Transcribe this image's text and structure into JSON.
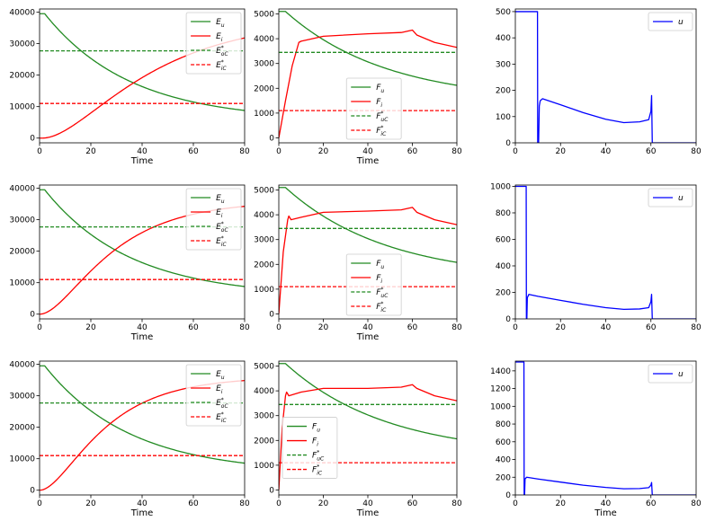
{
  "figure": {
    "title": "",
    "rows": 3,
    "cols": 3
  },
  "chart_data": [
    {
      "id": "r0c0",
      "type": "line",
      "xlabel": "Time",
      "xlim": [
        0,
        80
      ],
      "ylim": [
        -1500,
        41000
      ],
      "xticks": [
        0,
        20,
        40,
        60,
        80
      ],
      "yticks": [
        0,
        10000,
        20000,
        30000,
        40000
      ],
      "legend_loc": "top-right",
      "series": [
        {
          "name": "E_u",
          "label": {
            "base": "E",
            "sub": "u",
            "sup": ""
          },
          "color": "#228b22",
          "style": "solid",
          "kind": "decay",
          "params": {
            "start": 39500,
            "end": 5500,
            "k": 0.03,
            "delay": 2
          }
        },
        {
          "name": "E_i",
          "label": {
            "base": "E",
            "sub": "i",
            "sup": ""
          },
          "color": "#ff0000",
          "style": "solid",
          "kind": "sigmoid",
          "params": {
            "start": 0,
            "max": 38000,
            "k": 0.03,
            "t0": 1
          }
        },
        {
          "name": "E*_oC",
          "label": {
            "base": "E",
            "sub": "oC",
            "sup": "*"
          },
          "color": "#228b22",
          "style": "dashed",
          "kind": "const",
          "params": {
            "value": 27700
          }
        },
        {
          "name": "E*_iC",
          "label": {
            "base": "E",
            "sub": "iC",
            "sup": "*"
          },
          "color": "#ff0000",
          "style": "dashed",
          "kind": "const",
          "params": {
            "value": 11000
          }
        }
      ]
    },
    {
      "id": "r0c1",
      "type": "line",
      "xlabel": "Time",
      "xlim": [
        0,
        80
      ],
      "ylim": [
        -200,
        5200
      ],
      "xticks": [
        0,
        20,
        40,
        60,
        80
      ],
      "yticks": [
        0,
        1000,
        2000,
        3000,
        4000,
        5000
      ],
      "legend_loc": "lower-center",
      "series": [
        {
          "name": "F_u",
          "label": {
            "base": "F",
            "sub": "u",
            "sup": ""
          },
          "color": "#228b22",
          "style": "solid",
          "kind": "decay",
          "params": {
            "start": 5100,
            "end": 1450,
            "k": 0.022,
            "delay": 3
          }
        },
        {
          "name": "F_i",
          "label": {
            "base": "F",
            "sub": "i",
            "sup": ""
          },
          "color": "#ff0000",
          "style": "solid",
          "kind": "profile",
          "params": {
            "points": [
              [
                0,
                0
              ],
              [
                3,
                1500
              ],
              [
                6,
                2900
              ],
              [
                9,
                3850
              ],
              [
                10,
                3900
              ],
              [
                20,
                4100
              ],
              [
                40,
                4200
              ],
              [
                55,
                4250
              ],
              [
                60,
                4350
              ],
              [
                62,
                4150
              ],
              [
                70,
                3850
              ],
              [
                80,
                3650
              ]
            ]
          }
        },
        {
          "name": "F*_uC",
          "label": {
            "base": "F",
            "sub": "uC",
            "sup": "*"
          },
          "color": "#228b22",
          "style": "dashed",
          "kind": "const",
          "params": {
            "value": 3450
          }
        },
        {
          "name": "F*_iC",
          "label": {
            "base": "F",
            "sub": "iC",
            "sup": "*"
          },
          "color": "#ff0000",
          "style": "dashed",
          "kind": "const",
          "params": {
            "value": 1100
          }
        }
      ]
    },
    {
      "id": "r0c2",
      "type": "line",
      "xlabel": "",
      "xlim": [
        0,
        80
      ],
      "ylim": [
        0,
        510
      ],
      "xticks": [
        0,
        20,
        40,
        60,
        80
      ],
      "yticks": [
        0,
        100,
        200,
        300,
        400,
        500
      ],
      "legend_loc": "top-right",
      "series": [
        {
          "name": "u",
          "label": {
            "base": "u",
            "sub": "",
            "sup": ""
          },
          "color": "#0000ff",
          "style": "solid",
          "kind": "profile",
          "params": {
            "points": [
              [
                0,
                500
              ],
              [
                9.8,
                500
              ],
              [
                9.9,
                0
              ],
              [
                10.3,
                0
              ],
              [
                10.6,
                140
              ],
              [
                11,
                160
              ],
              [
                12,
                168
              ],
              [
                20,
                145
              ],
              [
                30,
                115
              ],
              [
                40,
                90
              ],
              [
                48,
                77
              ],
              [
                55,
                80
              ],
              [
                59,
                88
              ],
              [
                60,
                120
              ],
              [
                60.3,
                180
              ],
              [
                60.6,
                0
              ],
              [
                80,
                0
              ]
            ]
          }
        }
      ]
    },
    {
      "id": "r1c0",
      "type": "line",
      "xlabel": "Time",
      "xlim": [
        0,
        80
      ],
      "ylim": [
        -1500,
        41000
      ],
      "xticks": [
        0,
        20,
        40,
        60,
        80
      ],
      "yticks": [
        0,
        10000,
        20000,
        30000,
        40000
      ],
      "legend_loc": "top-right",
      "series": [
        {
          "name": "E_u",
          "label": {
            "base": "E",
            "sub": "u",
            "sup": ""
          },
          "color": "#228b22",
          "style": "solid",
          "kind": "decay",
          "params": {
            "start": 39500,
            "end": 5500,
            "k": 0.03,
            "delay": 2
          }
        },
        {
          "name": "E_i",
          "label": {
            "base": "E",
            "sub": "i",
            "sup": ""
          },
          "color": "#ff0000",
          "style": "solid",
          "kind": "sigmoid",
          "params": {
            "start": 0,
            "max": 36000,
            "k": 0.045,
            "t0": 0
          }
        },
        {
          "name": "E*_oC",
          "label": {
            "base": "E",
            "sub": "oC",
            "sup": "*"
          },
          "color": "#228b22",
          "style": "dashed",
          "kind": "const",
          "params": {
            "value": 27700
          }
        },
        {
          "name": "E*_iC",
          "label": {
            "base": "E",
            "sub": "iC",
            "sup": "*"
          },
          "color": "#ff0000",
          "style": "dashed",
          "kind": "const",
          "params": {
            "value": 11000
          }
        }
      ]
    },
    {
      "id": "r1c1",
      "type": "line",
      "xlabel": "Time",
      "xlim": [
        0,
        80
      ],
      "ylim": [
        -200,
        5200
      ],
      "xticks": [
        0,
        20,
        40,
        60,
        80
      ],
      "yticks": [
        0,
        1000,
        2000,
        3000,
        4000,
        5000
      ],
      "legend_loc": "lower-center",
      "series": [
        {
          "name": "F_u",
          "label": {
            "base": "F",
            "sub": "u",
            "sup": ""
          },
          "color": "#228b22",
          "style": "solid",
          "kind": "decay",
          "params": {
            "start": 5100,
            "end": 1400,
            "k": 0.022,
            "delay": 3
          }
        },
        {
          "name": "F_i",
          "label": {
            "base": "F",
            "sub": "i",
            "sup": ""
          },
          "color": "#ff0000",
          "style": "solid",
          "kind": "profile",
          "params": {
            "points": [
              [
                0,
                0
              ],
              [
                2,
                2500
              ],
              [
                4,
                3800
              ],
              [
                4.5,
                3950
              ],
              [
                5.5,
                3800
              ],
              [
                10,
                3900
              ],
              [
                20,
                4100
              ],
              [
                40,
                4150
              ],
              [
                55,
                4200
              ],
              [
                60,
                4300
              ],
              [
                62,
                4100
              ],
              [
                70,
                3800
              ],
              [
                80,
                3600
              ]
            ]
          }
        },
        {
          "name": "F*_uC",
          "label": {
            "base": "F",
            "sub": "uC",
            "sup": "*"
          },
          "color": "#228b22",
          "style": "dashed",
          "kind": "const",
          "params": {
            "value": 3450
          }
        },
        {
          "name": "F*_iC",
          "label": {
            "base": "F",
            "sub": "iC",
            "sup": "*"
          },
          "color": "#ff0000",
          "style": "dashed",
          "kind": "const",
          "params": {
            "value": 1100
          }
        }
      ]
    },
    {
      "id": "r1c2",
      "type": "line",
      "xlabel": "",
      "xlim": [
        0,
        80
      ],
      "ylim": [
        0,
        1010
      ],
      "xticks": [
        0,
        20,
        40,
        60,
        80
      ],
      "yticks": [
        0,
        200,
        400,
        600,
        800,
        1000
      ],
      "legend_loc": "top-right",
      "series": [
        {
          "name": "u",
          "label": {
            "base": "u",
            "sub": "",
            "sup": ""
          },
          "color": "#0000ff",
          "style": "solid",
          "kind": "profile",
          "params": {
            "points": [
              [
                0,
                1000
              ],
              [
                4.8,
                1000
              ],
              [
                4.9,
                0
              ],
              [
                5.1,
                0
              ],
              [
                5.3,
                160
              ],
              [
                6,
                185
              ],
              [
                10,
                170
              ],
              [
                20,
                140
              ],
              [
                30,
                110
              ],
              [
                40,
                85
              ],
              [
                48,
                72
              ],
              [
                55,
                75
              ],
              [
                59,
                85
              ],
              [
                60,
                130
              ],
              [
                60.3,
                185
              ],
              [
                60.6,
                0
              ],
              [
                80,
                0
              ]
            ]
          }
        }
      ]
    },
    {
      "id": "r2c0",
      "type": "line",
      "xlabel": "Time",
      "xlim": [
        0,
        80
      ],
      "ylim": [
        -1500,
        41000
      ],
      "xticks": [
        0,
        20,
        40,
        60,
        80
      ],
      "yticks": [
        0,
        10000,
        20000,
        30000,
        40000
      ],
      "legend_loc": "top-right",
      "series": [
        {
          "name": "E_u",
          "label": {
            "base": "E",
            "sub": "u",
            "sup": ""
          },
          "color": "#228b22",
          "style": "solid",
          "kind": "decay",
          "params": {
            "start": 39500,
            "end": 5300,
            "k": 0.03,
            "delay": 2
          }
        },
        {
          "name": "E_i",
          "label": {
            "base": "E",
            "sub": "i",
            "sup": ""
          },
          "color": "#ff0000",
          "style": "solid",
          "kind": "sigmoid",
          "params": {
            "start": 0,
            "max": 36000,
            "k": 0.05,
            "t0": 0
          }
        },
        {
          "name": "E*_oC",
          "label": {
            "base": "E",
            "sub": "oC",
            "sup": "*"
          },
          "color": "#228b22",
          "style": "dashed",
          "kind": "const",
          "params": {
            "value": 27700
          }
        },
        {
          "name": "E*_iC",
          "label": {
            "base": "E",
            "sub": "iC",
            "sup": "*"
          },
          "color": "#ff0000",
          "style": "dashed",
          "kind": "const",
          "params": {
            "value": 11000
          }
        }
      ]
    },
    {
      "id": "r2c1",
      "type": "line",
      "xlabel": "Time",
      "xlim": [
        0,
        80
      ],
      "ylim": [
        -200,
        5200
      ],
      "xticks": [
        0,
        20,
        40,
        60,
        80
      ],
      "yticks": [
        0,
        1000,
        2000,
        3000,
        4000,
        5000
      ],
      "legend_loc": "center-left",
      "series": [
        {
          "name": "F_u",
          "label": {
            "base": "F",
            "sub": "u",
            "sup": ""
          },
          "color": "#228b22",
          "style": "solid",
          "kind": "decay",
          "params": {
            "start": 5100,
            "end": 1380,
            "k": 0.022,
            "delay": 3
          }
        },
        {
          "name": "F_i",
          "label": {
            "base": "F",
            "sub": "i",
            "sup": ""
          },
          "color": "#ff0000",
          "style": "solid",
          "kind": "profile",
          "params": {
            "points": [
              [
                0,
                0
              ],
              [
                1.5,
                2500
              ],
              [
                3,
                3800
              ],
              [
                3.5,
                3950
              ],
              [
                4.5,
                3800
              ],
              [
                10,
                3950
              ],
              [
                20,
                4100
              ],
              [
                40,
                4100
              ],
              [
                55,
                4150
              ],
              [
                60,
                4250
              ],
              [
                62,
                4100
              ],
              [
                70,
                3800
              ],
              [
                80,
                3600
              ]
            ]
          }
        },
        {
          "name": "F*_uC",
          "label": {
            "base": "F",
            "sub": "uC",
            "sup": "*"
          },
          "color": "#228b22",
          "style": "dashed",
          "kind": "const",
          "params": {
            "value": 3450
          }
        },
        {
          "name": "F*_iC",
          "label": {
            "base": "F",
            "sub": "iC",
            "sup": "*"
          },
          "color": "#ff0000",
          "style": "dashed",
          "kind": "const",
          "params": {
            "value": 1100
          }
        }
      ]
    },
    {
      "id": "r2c2",
      "type": "line",
      "xlabel": "Time",
      "xlim": [
        0,
        80
      ],
      "ylim": [
        0,
        1510
      ],
      "xticks": [
        0,
        20,
        40,
        60,
        80
      ],
      "yticks": [
        0,
        200,
        400,
        600,
        800,
        1000,
        1200,
        1400
      ],
      "legend_loc": "top-right",
      "series": [
        {
          "name": "u",
          "label": {
            "base": "u",
            "sub": "",
            "sup": ""
          },
          "color": "#0000ff",
          "style": "solid",
          "kind": "profile",
          "params": {
            "points": [
              [
                0,
                1500
              ],
              [
                3.8,
                1500
              ],
              [
                3.9,
                0
              ],
              [
                4.1,
                0
              ],
              [
                4.3,
                180
              ],
              [
                5,
                200
              ],
              [
                10,
                180
              ],
              [
                20,
                145
              ],
              [
                30,
                110
              ],
              [
                40,
                85
              ],
              [
                48,
                70
              ],
              [
                55,
                72
              ],
              [
                59,
                82
              ],
              [
                60,
                110
              ],
              [
                60.3,
                140
              ],
              [
                60.6,
                0
              ],
              [
                80,
                0
              ]
            ]
          }
        }
      ]
    }
  ]
}
